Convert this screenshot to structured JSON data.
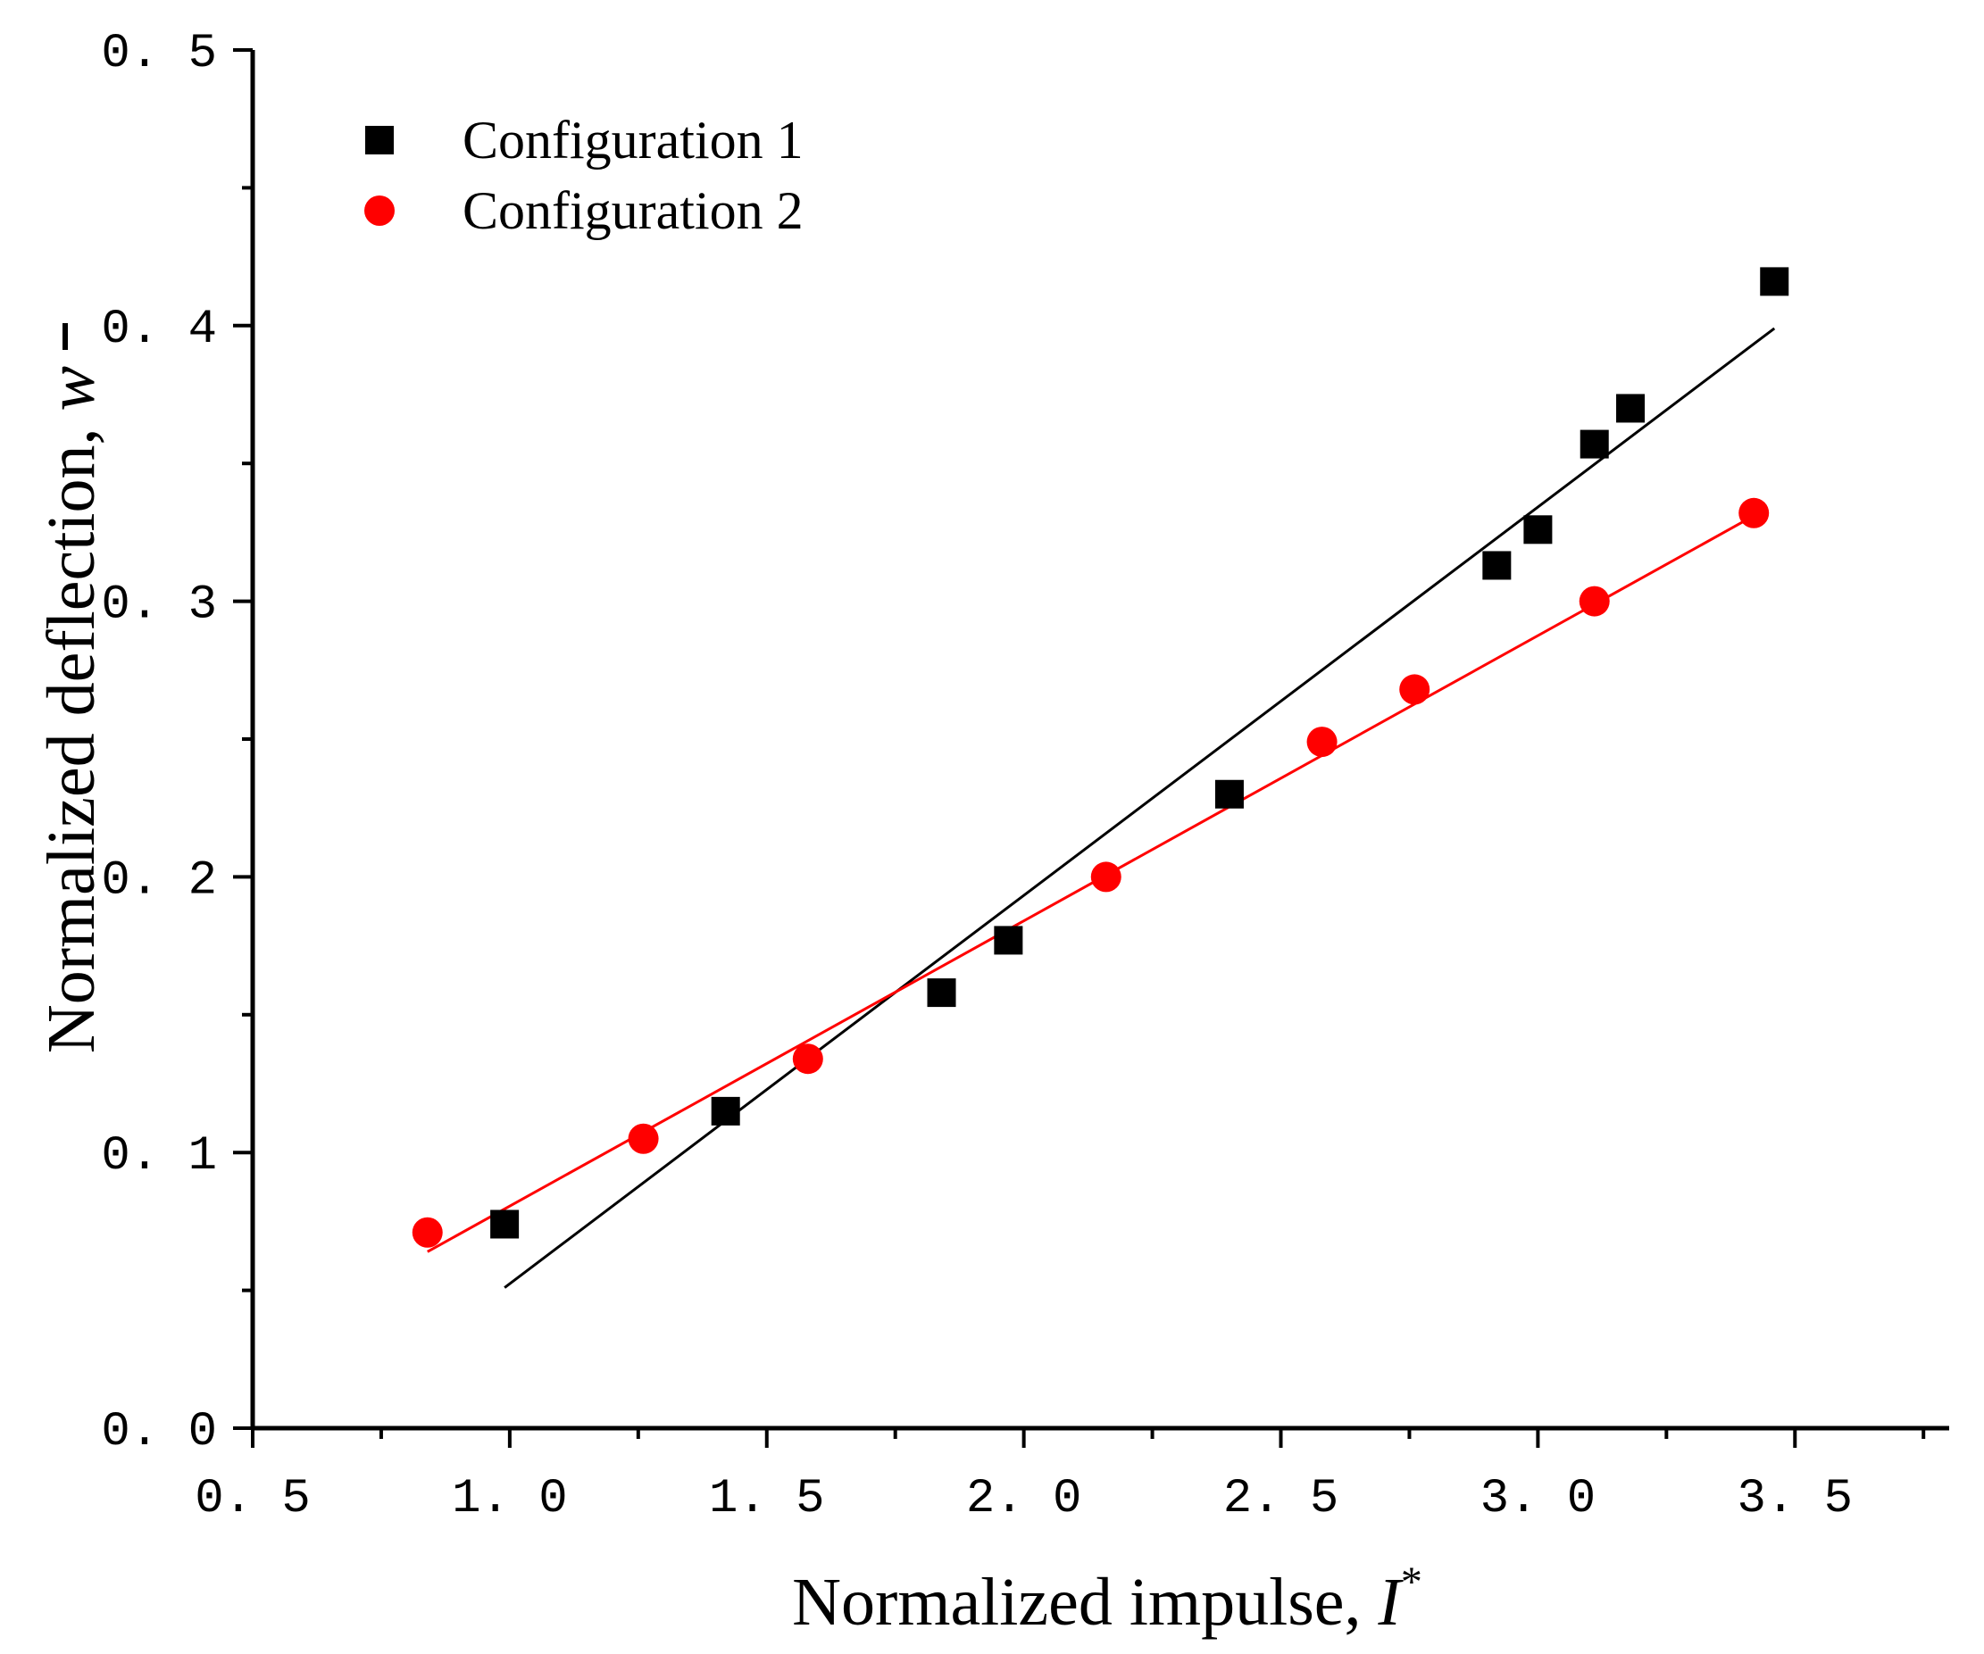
{
  "chart_data": {
    "type": "scatter",
    "title": "",
    "xlabel": "Normalized impulse, ",
    "xlabel_symbol": "I",
    "xlabel_superscript": "*",
    "ylabel": "Normalized deflection, ",
    "ylabel_symbol": "w",
    "xlim": [
      0.5,
      3.8
    ],
    "ylim": [
      0.0,
      0.5
    ],
    "x_ticks": [
      0.5,
      1.0,
      1.5,
      2.0,
      2.5,
      3.0,
      3.5
    ],
    "x_tick_labels": [
      "0. 5",
      "1. 0",
      "1. 5",
      "2. 0",
      "2. 5",
      "3. 0",
      "3. 5"
    ],
    "x_minor_ticks": [
      0.75,
      1.25,
      1.75,
      2.25,
      2.75,
      3.25,
      3.75
    ],
    "y_ticks": [
      0.0,
      0.1,
      0.2,
      0.3,
      0.4,
      0.5
    ],
    "y_tick_labels": [
      "0. 0",
      "0. 1",
      "0. 2",
      "0. 3",
      "0. 4",
      "0. 5"
    ],
    "y_minor_ticks": [
      0.05,
      0.15,
      0.25,
      0.35,
      0.45
    ],
    "grid": false,
    "legend_position": "top-left",
    "series": [
      {
        "name": "Configuration 1",
        "marker": "square",
        "color": "#000000",
        "x": [
          0.99,
          1.42,
          1.84,
          1.97,
          2.4,
          2.92,
          3.0,
          3.11,
          3.18,
          3.46
        ],
        "y": [
          0.074,
          0.115,
          0.158,
          0.177,
          0.23,
          0.313,
          0.326,
          0.357,
          0.37,
          0.416
        ],
        "fit_line": {
          "x": [
            0.99,
            3.46
          ],
          "y": [
            0.051,
            0.399
          ]
        }
      },
      {
        "name": "Configuration 2",
        "marker": "circle",
        "color": "#ff0000",
        "x": [
          0.84,
          1.26,
          1.58,
          2.16,
          2.58,
          2.76,
          3.11,
          3.42
        ],
        "y": [
          0.071,
          0.105,
          0.134,
          0.2,
          0.249,
          0.268,
          0.3,
          0.332
        ],
        "fit_line": {
          "x": [
            0.84,
            3.42
          ],
          "y": [
            0.064,
            0.331
          ]
        }
      }
    ]
  }
}
